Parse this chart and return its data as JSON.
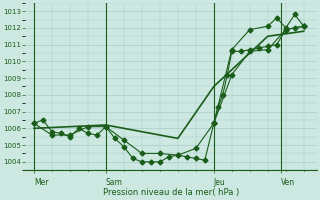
{
  "bg_color": "#cce8e0",
  "grid_color": "#aacccc",
  "line_color": "#1a5c1a",
  "marker_color": "#1a5c1a",
  "ylabel_values": [
    1004,
    1005,
    1006,
    1007,
    1008,
    1009,
    1010,
    1011,
    1012,
    1013
  ],
  "ylim": [
    1003.5,
    1013.5
  ],
  "xlabel": "Pression niveau de la mer( hPa )",
  "day_labels": [
    "Mer",
    "Sam",
    "Jeu",
    "Ven"
  ],
  "day_positions": [
    0,
    16,
    40,
    55
  ],
  "vline_positions": [
    0,
    16,
    40,
    55
  ],
  "series1_x": [
    0,
    2,
    4,
    6,
    8,
    10,
    12,
    14,
    16,
    18,
    20,
    22,
    24,
    26,
    28,
    30,
    32,
    34,
    36,
    38,
    40,
    41,
    42,
    43,
    44,
    46,
    48,
    50,
    52,
    54,
    56,
    58,
    60
  ],
  "series1_y": [
    1006.3,
    1006.5,
    1005.8,
    1005.7,
    1005.5,
    1006.0,
    1005.7,
    1005.6,
    1006.1,
    1005.4,
    1004.9,
    1004.2,
    1004.0,
    1004.0,
    1004.0,
    1004.3,
    1004.4,
    1004.3,
    1004.2,
    1004.1,
    1006.3,
    1007.3,
    1008.0,
    1009.2,
    1010.6,
    1010.6,
    1010.7,
    1010.8,
    1010.9,
    1011.0,
    1011.9,
    1012.0,
    1012.1
  ],
  "series2_x": [
    0,
    4,
    8,
    12,
    16,
    20,
    24,
    28,
    32,
    36,
    40,
    44,
    48,
    52,
    56,
    60
  ],
  "series2_y": [
    1006.3,
    1005.6,
    1005.6,
    1006.1,
    1006.1,
    1005.3,
    1004.5,
    1004.5,
    1004.4,
    1004.8,
    1006.3,
    1009.2,
    1010.6,
    1010.7,
    1011.9,
    1012.1
  ],
  "series3_x": [
    0,
    16,
    32,
    40,
    52,
    60
  ],
  "series3_y": [
    1006.0,
    1006.2,
    1005.4,
    1008.5,
    1011.5,
    1011.8
  ],
  "series4_x": [
    40,
    44,
    48,
    52,
    54,
    56,
    58,
    60
  ],
  "series4_y": [
    1006.3,
    1010.7,
    1011.9,
    1012.1,
    1012.6,
    1012.0,
    1012.8,
    1012.1
  ],
  "xlim": [
    -2,
    63
  ]
}
